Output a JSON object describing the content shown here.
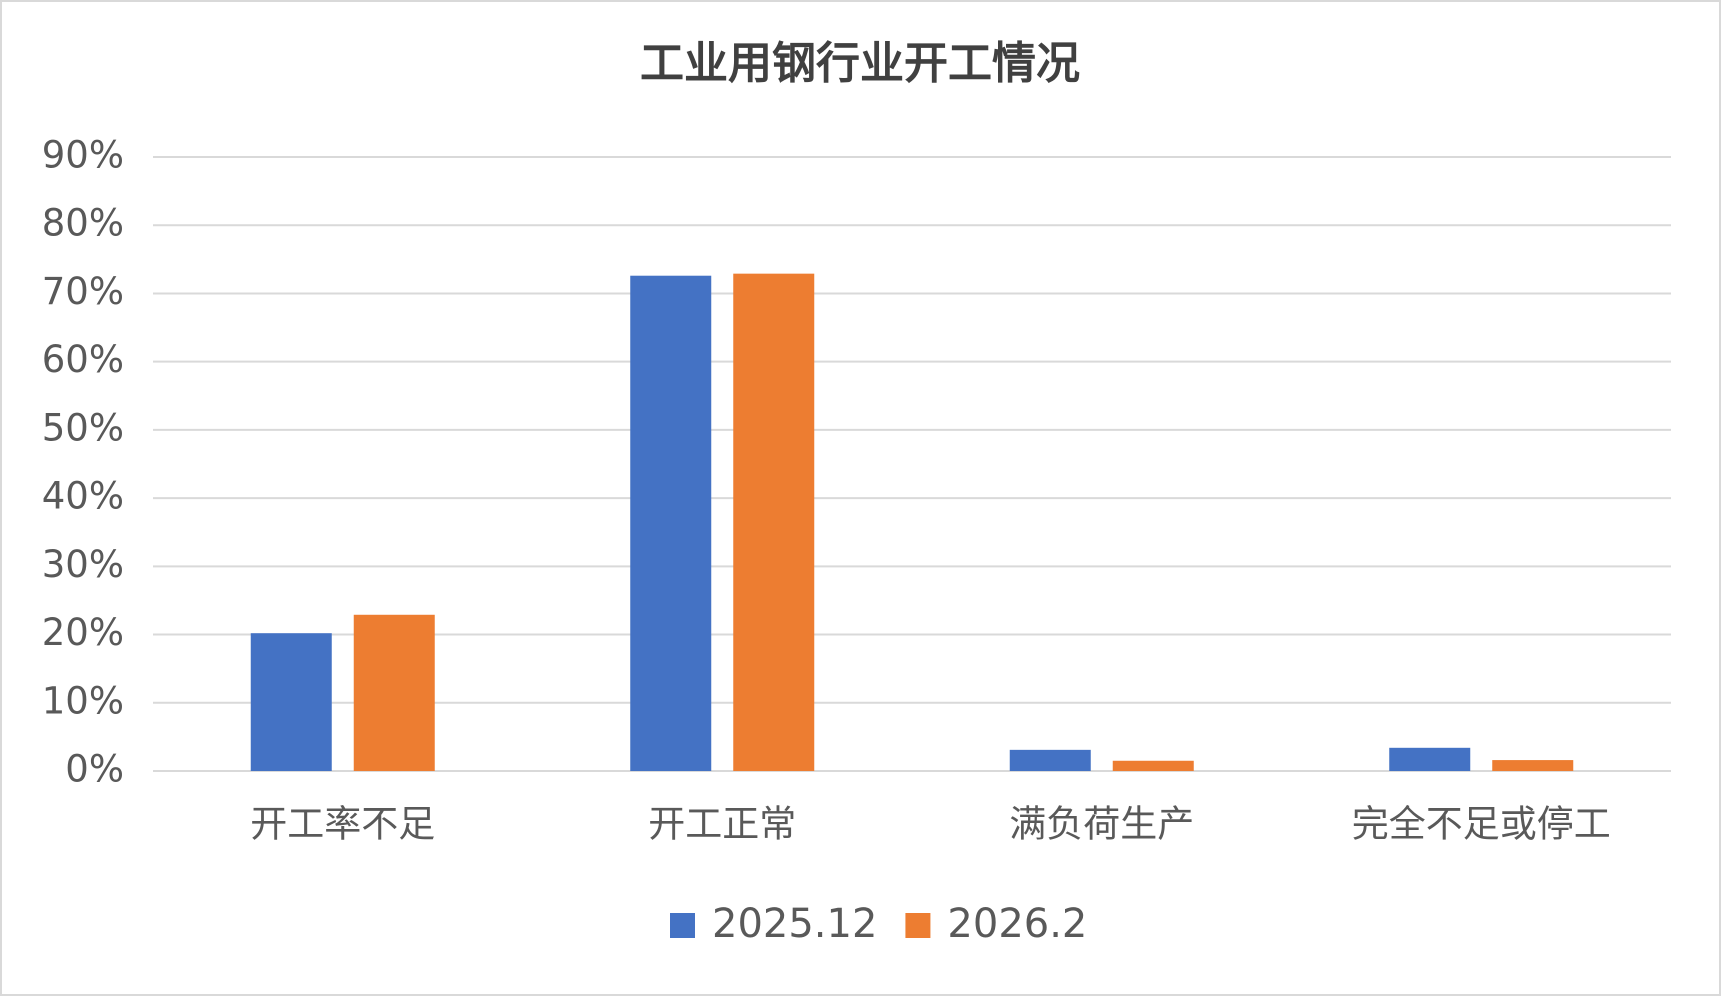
{
  "chart_data": {
    "type": "bar",
    "title": "工业用钢行业开工情况",
    "categories": [
      "开工率不足",
      "开工正常",
      "满负荷生产",
      "完全不足或停工"
    ],
    "series": [
      {
        "name": "2025.12",
        "color": "#4472c4",
        "values": [
          20.2,
          72.6,
          3.1,
          3.4
        ]
      },
      {
        "name": "2026.2",
        "color": "#ed7d31",
        "values": [
          22.9,
          72.9,
          1.5,
          1.6
        ]
      }
    ],
    "ylim": [
      0,
      90
    ],
    "yticks": [
      {
        "value": 0,
        "label": "0%"
      },
      {
        "value": 10,
        "label": "10%"
      },
      {
        "value": 20,
        "label": "20%"
      },
      {
        "value": 30,
        "label": "30%"
      },
      {
        "value": 40,
        "label": "40%"
      },
      {
        "value": 50,
        "label": "50%"
      },
      {
        "value": 60,
        "label": "60%"
      },
      {
        "value": 70,
        "label": "70%"
      },
      {
        "value": 80,
        "label": "80%"
      },
      {
        "value": 90,
        "label": "90%"
      }
    ],
    "grid": true,
    "legend": "bottom"
  }
}
